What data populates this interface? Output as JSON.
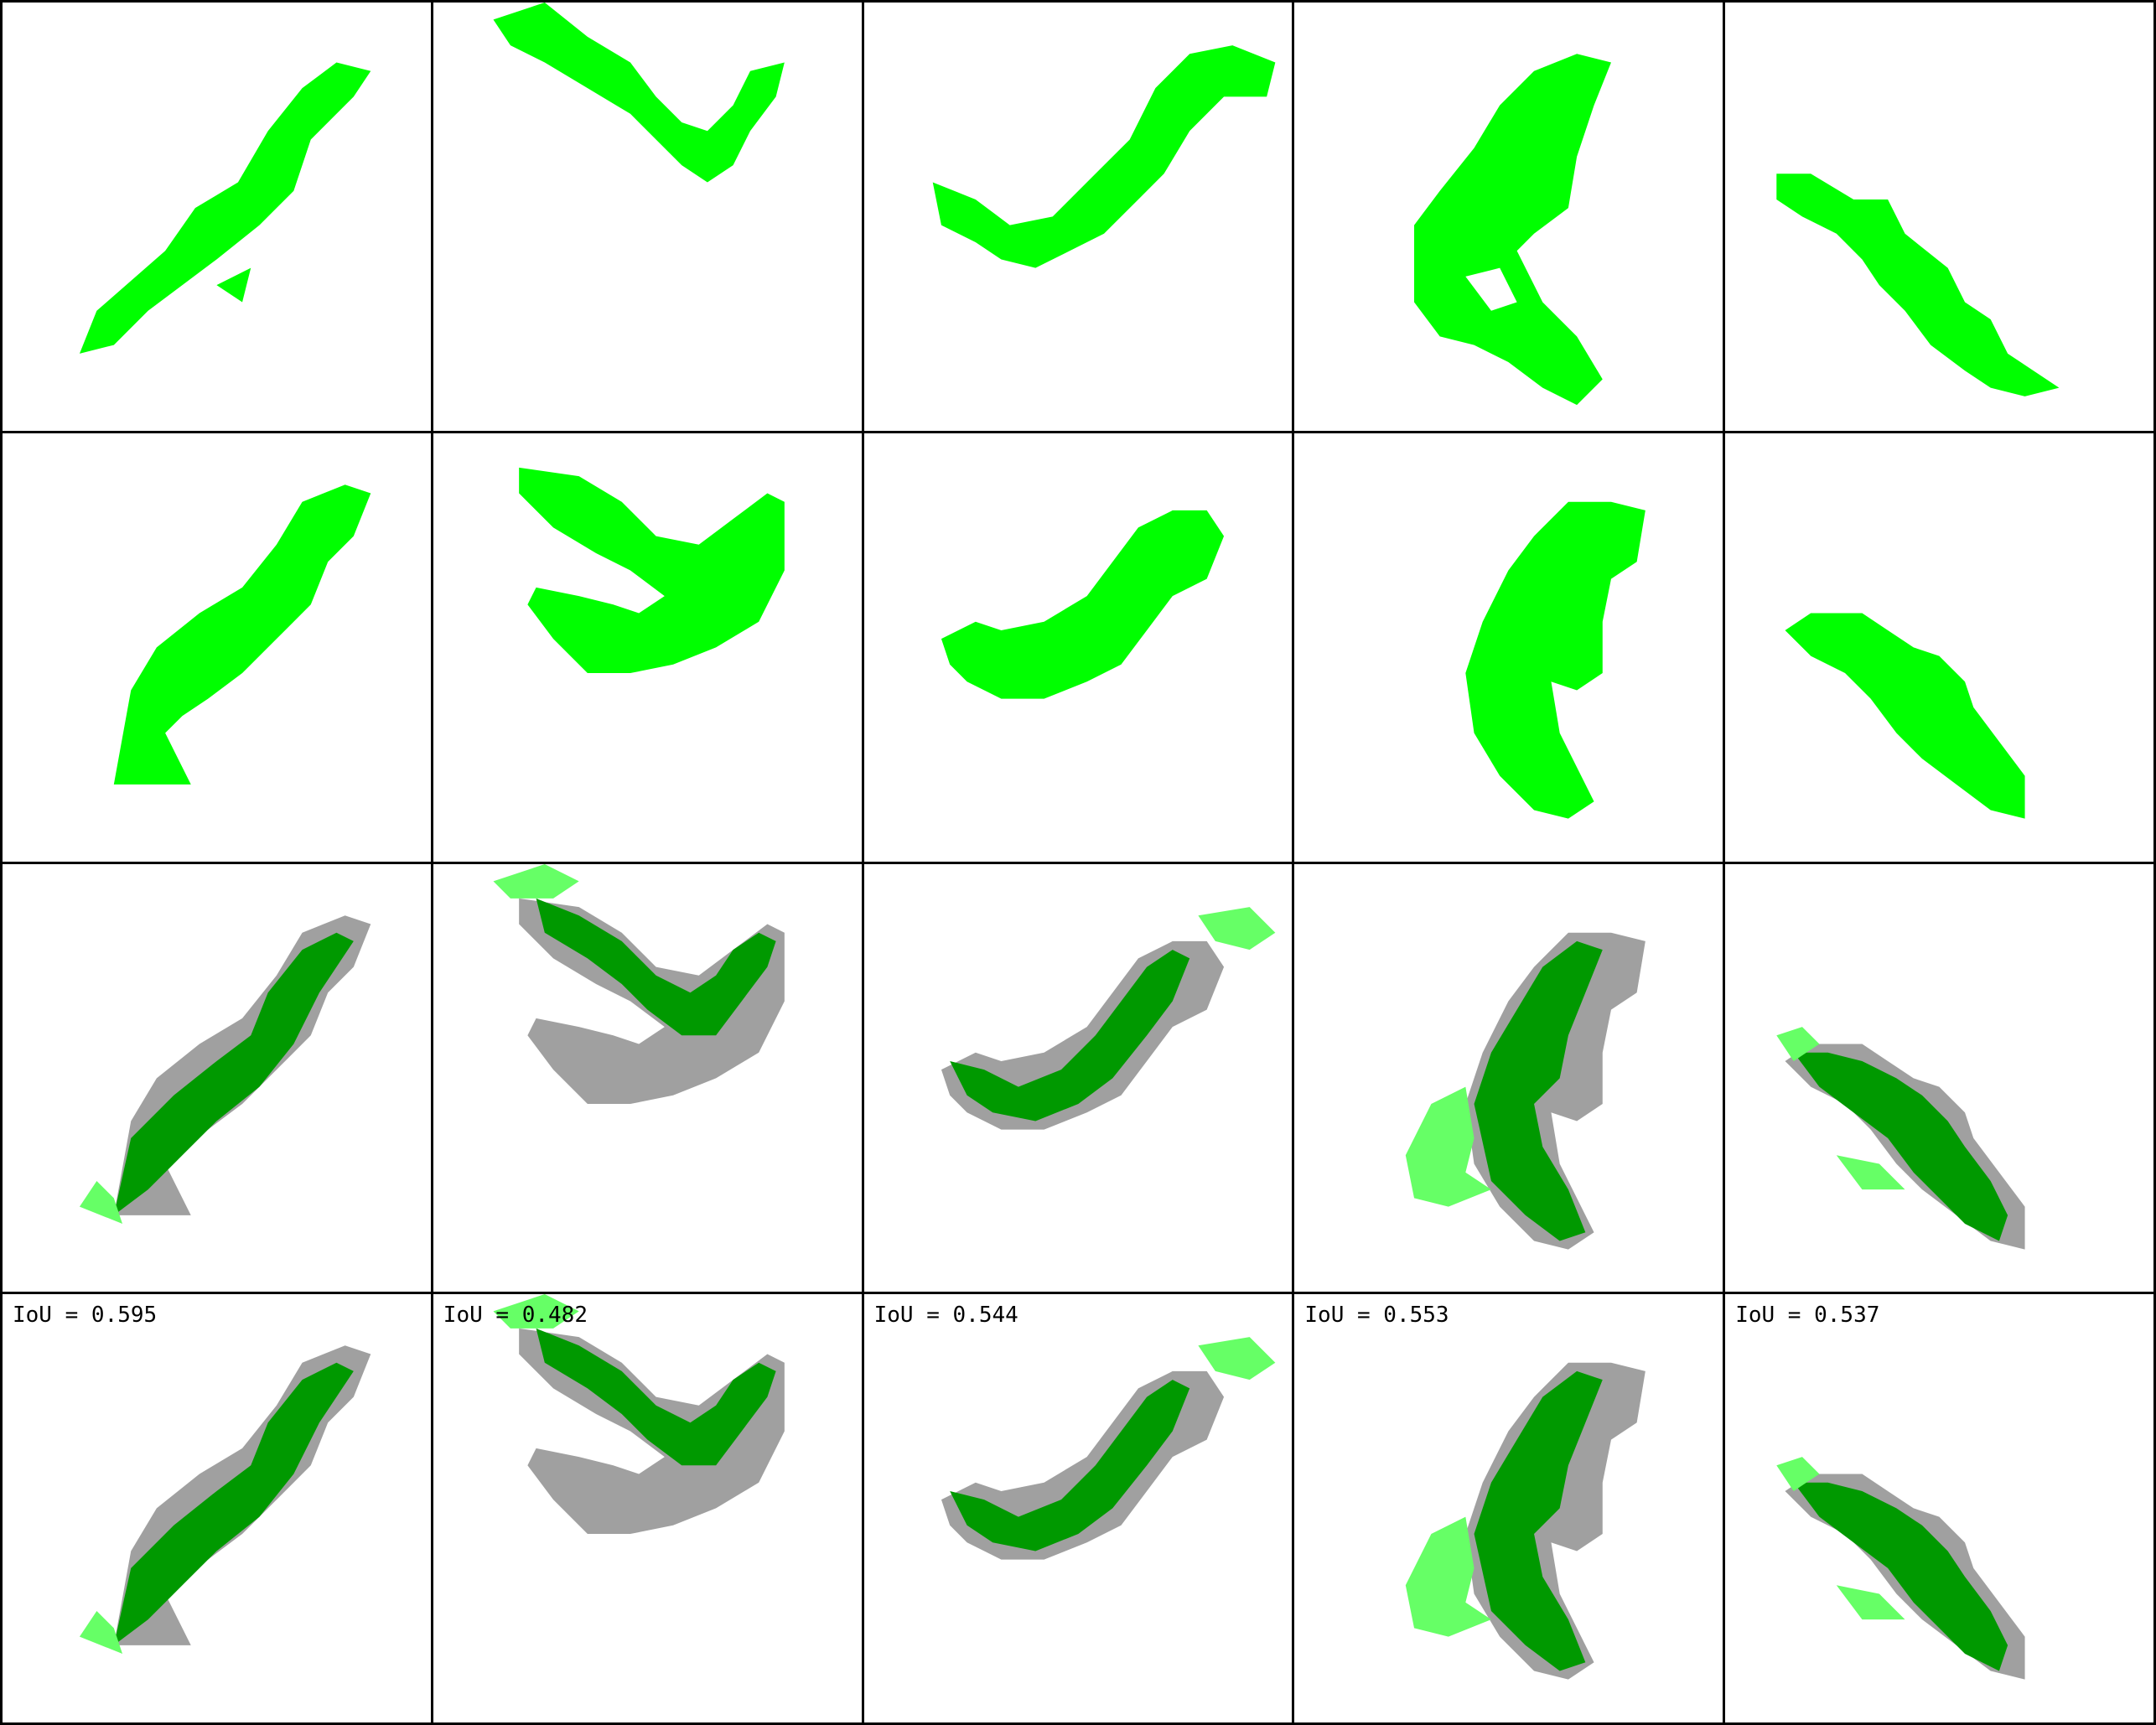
{
  "figure": {
    "rows": [
      {
        "row": "sample",
        "cells": 5
      },
      {
        "row": "prediction",
        "cells": 5
      },
      {
        "row": "overlay",
        "cells": 5
      },
      {
        "row": "overlay-with-iou",
        "cells": 5
      }
    ],
    "iou_labels": [
      "IoU = 0.595",
      "IoU = 0.482",
      "IoU = 0.544",
      "IoU = 0.553",
      "IoU = 0.537"
    ],
    "colors": {
      "predicted_mask": "#00ff00",
      "overlap": "#009900",
      "false_positive": "#66ff66",
      "false_negative": "#a0a0a0",
      "background": "#ffffff",
      "grid_line": "#000000"
    }
  }
}
